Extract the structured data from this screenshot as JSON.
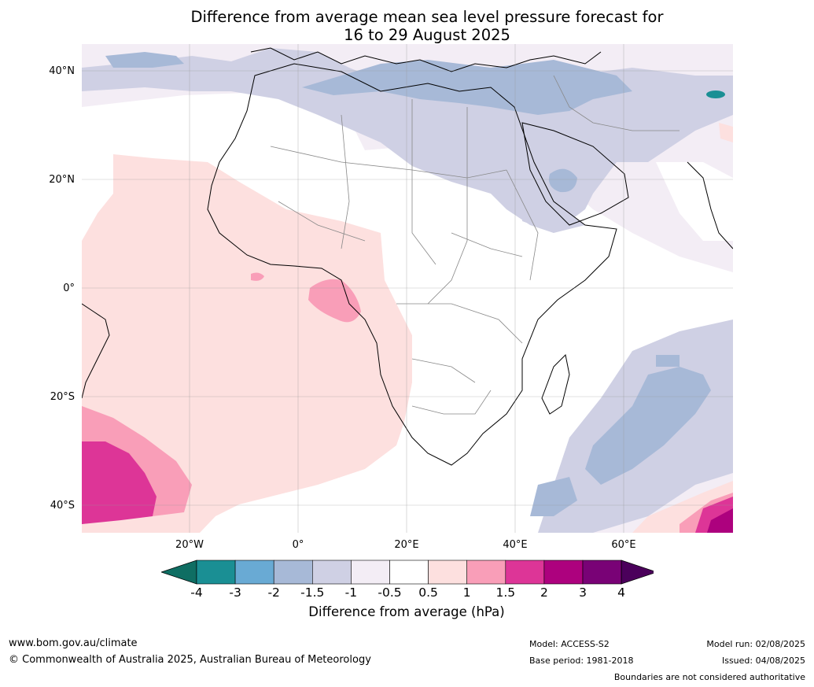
{
  "title": {
    "line1": "Difference from average mean sea level pressure forecast for",
    "line2": "16 to 29 August 2025"
  },
  "map": {
    "lat_labels": [
      "40°N",
      "20°N",
      "0°",
      "20°S",
      "40°S"
    ],
    "lon_labels": [
      "20°W",
      "0°",
      "20°E",
      "40°E",
      "60°E"
    ]
  },
  "colorbar": {
    "title": "Difference from average (hPa)",
    "ticks": [
      "-4",
      "-3",
      "-2",
      "-1.5",
      "-1",
      "-0.5",
      "0.5",
      "1",
      "1.5",
      "2",
      "3",
      "4"
    ],
    "colors": [
      "#1a8f94",
      "#69aad4",
      "#a7b9d7",
      "#cfd0e4",
      "#f3edf5",
      "#ffffff",
      "#fde0df",
      "#f99eb8",
      "#dd3597",
      "#ad017e",
      "#790276"
    ],
    "extend_low_color": "#0f6e63",
    "extend_high_color": "#4b005b"
  },
  "footer": {
    "website": "www.bom.gov.au/climate",
    "copyright": "© Commonwealth of Australia 2025, Australian Bureau of Meteorology",
    "model": "Model: ACCESS-S2",
    "base_period": "Base period: 1981-2018",
    "model_run": "Model run: 02/08/2025",
    "issued": "Issued: 04/08/2025",
    "disclaimer": "Boundaries are not considered authoritative"
  }
}
